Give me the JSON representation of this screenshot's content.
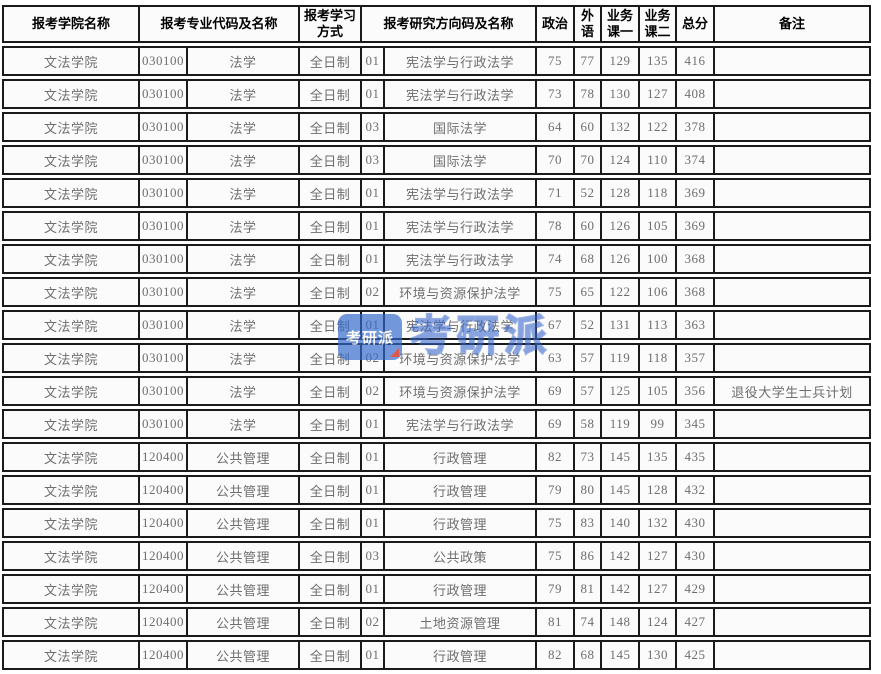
{
  "table": {
    "headers": {
      "college": "报考学院名称",
      "major": "报考专业代码及名称",
      "study_mode": "报考学习方式",
      "direction": "报考研究方向码及名称",
      "politics": "政治",
      "foreign_lang": "外语",
      "course1": "业务课一",
      "course2": "业务课二",
      "total": "总分",
      "note": "备注"
    },
    "column_keys": [
      "college",
      "major_code",
      "major_name",
      "study_mode",
      "dir_code",
      "dir_name",
      "politics",
      "foreign_lang",
      "course1",
      "course2",
      "total",
      "note"
    ]
  },
  "chart_data": {
    "type": "table",
    "title": "",
    "columns": [
      "报考学院名称",
      "报考专业代码",
      "报考专业名称",
      "报考学习方式",
      "报考研究方向码",
      "报考研究方向名称",
      "政治",
      "外语",
      "业务课一",
      "业务课二",
      "总分",
      "备注"
    ],
    "rows": [
      [
        "文法学院",
        "030100",
        "法学",
        "全日制",
        "01",
        "宪法学与行政法学",
        75,
        77,
        129,
        135,
        416,
        ""
      ],
      [
        "文法学院",
        "030100",
        "法学",
        "全日制",
        "01",
        "宪法学与行政法学",
        73,
        78,
        130,
        127,
        408,
        ""
      ],
      [
        "文法学院",
        "030100",
        "法学",
        "全日制",
        "03",
        "国际法学",
        64,
        60,
        132,
        122,
        378,
        ""
      ],
      [
        "文法学院",
        "030100",
        "法学",
        "全日制",
        "03",
        "国际法学",
        70,
        70,
        124,
        110,
        374,
        ""
      ],
      [
        "文法学院",
        "030100",
        "法学",
        "全日制",
        "01",
        "宪法学与行政法学",
        71,
        52,
        128,
        118,
        369,
        ""
      ],
      [
        "文法学院",
        "030100",
        "法学",
        "全日制",
        "01",
        "宪法学与行政法学",
        78,
        60,
        126,
        105,
        369,
        ""
      ],
      [
        "文法学院",
        "030100",
        "法学",
        "全日制",
        "01",
        "宪法学与行政法学",
        74,
        68,
        126,
        100,
        368,
        ""
      ],
      [
        "文法学院",
        "030100",
        "法学",
        "全日制",
        "02",
        "环境与资源保护法学",
        75,
        65,
        122,
        106,
        368,
        ""
      ],
      [
        "文法学院",
        "030100",
        "法学",
        "全日制",
        "01",
        "宪法学与行政法学",
        67,
        52,
        131,
        113,
        363,
        ""
      ],
      [
        "文法学院",
        "030100",
        "法学",
        "全日制",
        "02",
        "环境与资源保护法学",
        63,
        57,
        119,
        118,
        357,
        ""
      ],
      [
        "文法学院",
        "030100",
        "法学",
        "全日制",
        "02",
        "环境与资源保护法学",
        69,
        57,
        125,
        105,
        356,
        "退役大学生士兵计划"
      ],
      [
        "文法学院",
        "030100",
        "法学",
        "全日制",
        "01",
        "宪法学与行政法学",
        69,
        58,
        119,
        99,
        345,
        ""
      ],
      [
        "文法学院",
        "120400",
        "公共管理",
        "全日制",
        "01",
        "行政管理",
        82,
        73,
        145,
        135,
        435,
        ""
      ],
      [
        "文法学院",
        "120400",
        "公共管理",
        "全日制",
        "01",
        "行政管理",
        79,
        80,
        145,
        128,
        432,
        ""
      ],
      [
        "文法学院",
        "120400",
        "公共管理",
        "全日制",
        "01",
        "行政管理",
        75,
        83,
        140,
        132,
        430,
        ""
      ],
      [
        "文法学院",
        "120400",
        "公共管理",
        "全日制",
        "03",
        "公共政策",
        75,
        86,
        142,
        127,
        430,
        ""
      ],
      [
        "文法学院",
        "120400",
        "公共管理",
        "全日制",
        "01",
        "行政管理",
        79,
        81,
        142,
        127,
        429,
        ""
      ],
      [
        "文法学院",
        "120400",
        "公共管理",
        "全日制",
        "02",
        "土地资源管理",
        81,
        74,
        148,
        124,
        427,
        ""
      ],
      [
        "文法学院",
        "120400",
        "公共管理",
        "全日制",
        "01",
        "行政管理",
        82,
        68,
        145,
        130,
        425,
        ""
      ]
    ]
  },
  "watermark": {
    "badge_text": "考研派",
    "text": "考研派",
    "blue": "#3e73cc",
    "red": "#d93025"
  },
  "colors": {
    "border": "#1a1a1a",
    "data_text": "#6e6e6e",
    "header_text": "#000000"
  }
}
